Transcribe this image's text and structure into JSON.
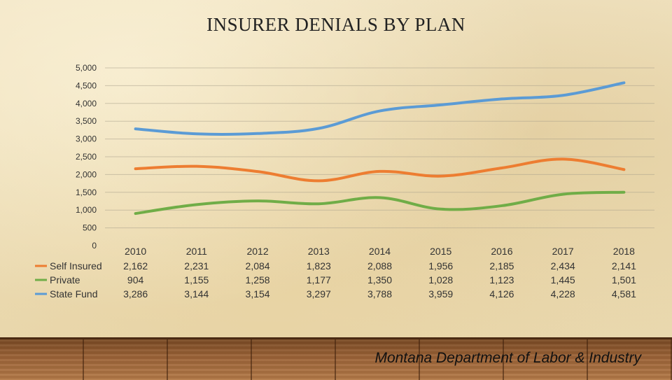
{
  "title": "INSURER DENIALS BY PLAN",
  "footer": "Montana Department of Labor & Industry",
  "chart_data": {
    "type": "line",
    "categories": [
      "2010",
      "2011",
      "2012",
      "2013",
      "2014",
      "2015",
      "2016",
      "2017",
      "2018"
    ],
    "series": [
      {
        "name": "Self Insured",
        "color": "#ed7d31",
        "values": [
          2162,
          2231,
          2084,
          1823,
          2088,
          1956,
          2185,
          2434,
          2141
        ]
      },
      {
        "name": "Private",
        "color": "#70ad47",
        "values": [
          904,
          1155,
          1258,
          1177,
          1350,
          1028,
          1123,
          1445,
          1501
        ]
      },
      {
        "name": "State Fund",
        "color": "#5b9bd5",
        "values": [
          3286,
          3144,
          3154,
          3297,
          3788,
          3959,
          4126,
          4228,
          4581
        ]
      }
    ],
    "y_ticks": [
      "0",
      "500",
      "1,000",
      "1,500",
      "2,000",
      "2,500",
      "3,000",
      "3,500",
      "4,000",
      "4,500",
      "5,000"
    ],
    "ylim": [
      0,
      5000
    ],
    "data_table": [
      [
        "2,162",
        "2,231",
        "2,084",
        "1,823",
        "2,088",
        "1,956",
        "2,185",
        "2,434",
        "2,141"
      ],
      [
        "904",
        "1,155",
        "1,258",
        "1,177",
        "1,350",
        "1,028",
        "1,123",
        "1,445",
        "1,501"
      ],
      [
        "3,286",
        "3,144",
        "3,154",
        "3,297",
        "3,788",
        "3,959",
        "4,126",
        "4,228",
        "4,581"
      ]
    ],
    "legend": "bottom-left (data table)",
    "grid": true
  }
}
